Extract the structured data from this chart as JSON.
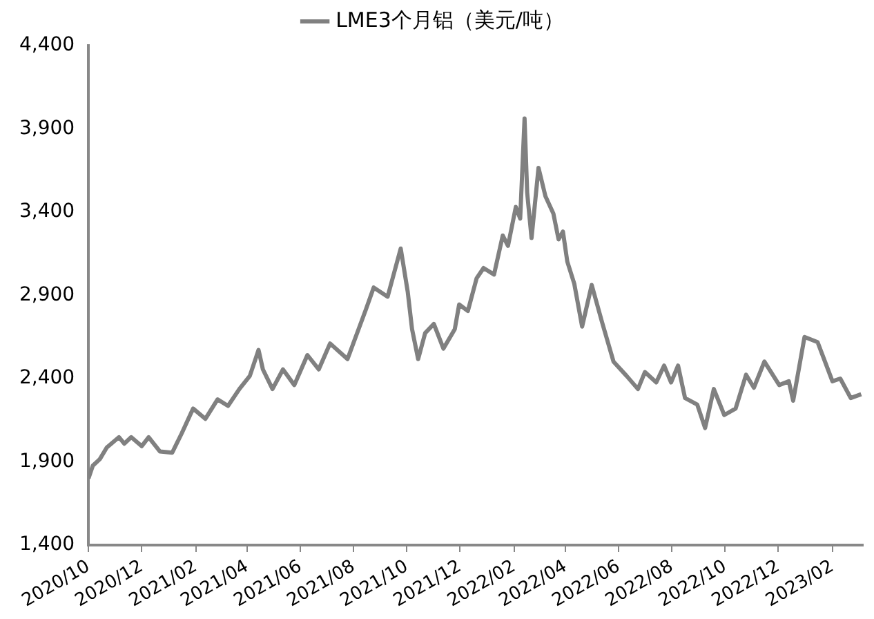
{
  "chart_data": {
    "type": "line",
    "legend": "top",
    "grid": false,
    "marker": "none",
    "line_style": "solid",
    "xlim": [
      "2020-10-01",
      "2023-03-08"
    ],
    "xticks": [
      {
        "value": "2020-10-01",
        "label": "2020/10"
      },
      {
        "value": "2020-12-01",
        "label": "2020/12"
      },
      {
        "value": "2021-02-01",
        "label": "2021/02"
      },
      {
        "value": "2021-04-01",
        "label": "2021/04"
      },
      {
        "value": "2021-06-01",
        "label": "2021/06"
      },
      {
        "value": "2021-08-01",
        "label": "2021/08"
      },
      {
        "value": "2021-10-01",
        "label": "2021/10"
      },
      {
        "value": "2021-12-01",
        "label": "2021/12"
      },
      {
        "value": "2022-02-01",
        "label": "2022/02"
      },
      {
        "value": "2022-04-01",
        "label": "2022/04"
      },
      {
        "value": "2022-06-01",
        "label": "2022/06"
      },
      {
        "value": "2022-08-01",
        "label": "2022/08"
      },
      {
        "value": "2022-10-01",
        "label": "2022/10"
      },
      {
        "value": "2022-12-01",
        "label": "2022/12"
      },
      {
        "value": "2023-02-01",
        "label": "2023/02"
      }
    ],
    "ylim": [
      1400,
      4400
    ],
    "yticks": [
      {
        "value": 1400,
        "label": "1,400"
      },
      {
        "value": 1900,
        "label": "1,900"
      },
      {
        "value": 2400,
        "label": "2,400"
      },
      {
        "value": 2900,
        "label": "2,900"
      },
      {
        "value": 3400,
        "label": "3,400"
      },
      {
        "value": 3900,
        "label": "3,900"
      },
      {
        "value": 4400,
        "label": "4,400"
      }
    ],
    "x": [
      "2020-10-01",
      "2020-10-06",
      "2020-10-14",
      "2020-10-22",
      "2020-11-05",
      "2020-11-11",
      "2020-11-19",
      "2020-12-01",
      "2020-12-09",
      "2020-12-22",
      "2021-01-05",
      "2021-01-16",
      "2021-01-29",
      "2021-02-12",
      "2021-02-26",
      "2021-03-10",
      "2021-03-23",
      "2021-04-04",
      "2021-04-14",
      "2021-04-19",
      "2021-04-30",
      "2021-05-12",
      "2021-05-25",
      "2021-06-09",
      "2021-06-22",
      "2021-07-05",
      "2021-07-25",
      "2021-08-05",
      "2021-08-15",
      "2021-08-24",
      "2021-09-09",
      "2021-09-24",
      "2021-10-02",
      "2021-10-07",
      "2021-10-14",
      "2021-10-22",
      "2021-11-01",
      "2021-11-12",
      "2021-11-25",
      "2021-11-30",
      "2021-12-10",
      "2021-12-20",
      "2021-12-28",
      "2022-01-09",
      "2022-01-19",
      "2022-01-25",
      "2022-02-03",
      "2022-02-08",
      "2022-02-13",
      "2022-02-16",
      "2022-02-21",
      "2022-03-01",
      "2022-03-09",
      "2022-03-18",
      "2022-03-24",
      "2022-03-29",
      "2022-04-03",
      "2022-04-11",
      "2022-04-20",
      "2022-05-01",
      "2022-05-13",
      "2022-05-26",
      "2022-06-10",
      "2022-06-23",
      "2022-07-01",
      "2022-07-14",
      "2022-07-23",
      "2022-07-31",
      "2022-08-08",
      "2022-08-16",
      "2022-08-30",
      "2022-09-08",
      "2022-09-18",
      "2022-09-30",
      "2022-10-13",
      "2022-10-25",
      "2022-11-03",
      "2022-11-15",
      "2022-12-02",
      "2022-12-13",
      "2022-12-18",
      "2022-12-31",
      "2023-01-15",
      "2023-02-01",
      "2023-02-10",
      "2023-02-22",
      "2023-03-06"
    ],
    "series": [
      {
        "name": "LME3个月铝（美元/吨）",
        "color": "#808080",
        "values": [
          1800,
          1877,
          1916,
          1986,
          2048,
          2009,
          2048,
          1994,
          2048,
          1962,
          1955,
          2072,
          2220,
          2158,
          2275,
          2236,
          2337,
          2416,
          2572,
          2455,
          2337,
          2455,
          2361,
          2541,
          2455,
          2611,
          2517,
          2673,
          2814,
          2947,
          2892,
          3181,
          2923,
          2697,
          2517,
          2673,
          2728,
          2580,
          2697,
          2845,
          2806,
          3002,
          3064,
          3025,
          3259,
          3197,
          3431,
          3361,
          3962,
          3517,
          3244,
          3666,
          3494,
          3392,
          3236,
          3283,
          3103,
          2970,
          2712,
          2962,
          2736,
          2502,
          2416,
          2337,
          2439,
          2377,
          2478,
          2377,
          2478,
          2283,
          2244,
          2103,
          2337,
          2181,
          2220,
          2423,
          2345,
          2502,
          2361,
          2384,
          2267,
          2650,
          2619,
          2384,
          2400,
          2283,
          2306
        ]
      }
    ]
  }
}
